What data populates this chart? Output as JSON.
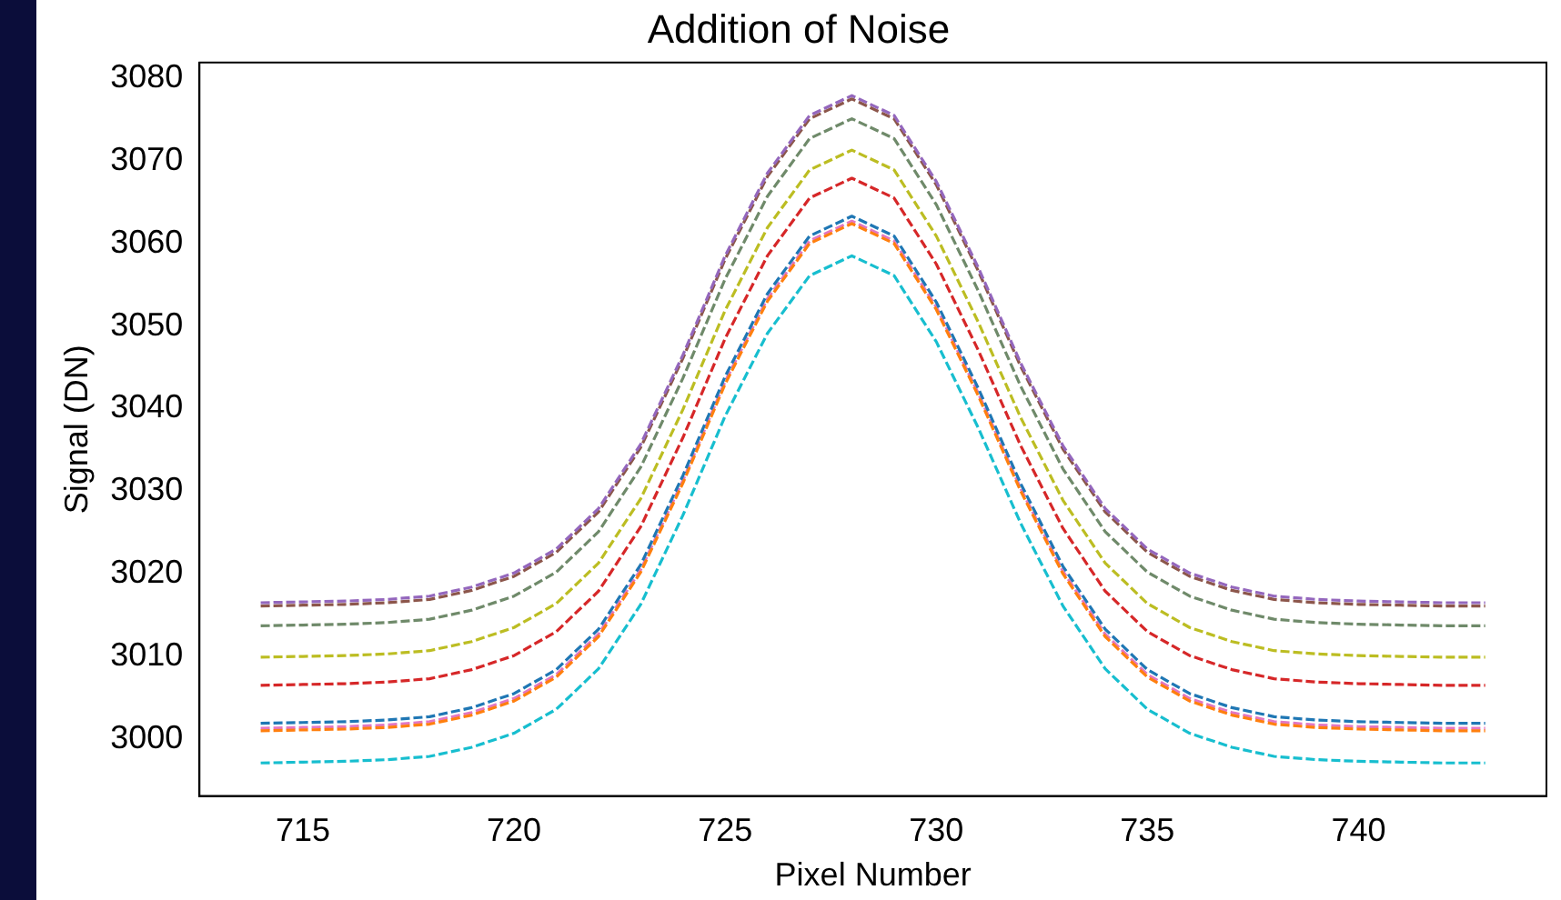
{
  "chart_data": {
    "type": "line",
    "title": "Addition of Noise",
    "xlabel": "Pixel Number",
    "ylabel": "Signal (DN)",
    "x": [
      714,
      715,
      716,
      717,
      718,
      719,
      720,
      721,
      722,
      723,
      724,
      725,
      726,
      727,
      728,
      729,
      730,
      731,
      732,
      733,
      734,
      735,
      736,
      737,
      738,
      739,
      740,
      741,
      742,
      743
    ],
    "xlim": [
      712.55,
      744.45
    ],
    "xticks": [
      715,
      720,
      725,
      730,
      735,
      740
    ],
    "ylim": [
      2993.1,
      3081.9
    ],
    "yticks": [
      3000,
      3010,
      3020,
      3030,
      3040,
      3050,
      3060,
      3070,
      3080
    ],
    "grid": false,
    "legend": false,
    "marker": "none",
    "line_style": "dashed",
    "series": [
      {
        "color": "#1f77b4",
        "values": [
          3001.9,
          3002.0,
          3002.1,
          3002.3,
          3002.7,
          3003.8,
          3005.5,
          3008.4,
          3013.3,
          3021.1,
          3031.9,
          3043.9,
          3053.9,
          3060.9,
          3063.3,
          3060.9,
          3052.9,
          3042.4,
          3030.9,
          3020.9,
          3013.3,
          3008.4,
          3005.5,
          3003.8,
          3002.7,
          3002.3,
          3002.1,
          3002.0,
          3001.9,
          3001.9
        ]
      },
      {
        "color": "#ff7f0e",
        "values": [
          3001.0,
          3001.1,
          3001.2,
          3001.4,
          3001.8,
          3002.9,
          3004.6,
          3007.5,
          3012.4,
          3020.2,
          3031.0,
          3043.0,
          3053.0,
          3060.0,
          3062.4,
          3060.0,
          3052.0,
          3041.5,
          3030.0,
          3020.0,
          3012.4,
          3007.5,
          3004.6,
          3002.9,
          3001.8,
          3001.4,
          3001.2,
          3001.1,
          3001.0,
          3001.0
        ]
      },
      {
        "color": "#6f8a6a",
        "values": [
          3013.7,
          3013.8,
          3013.9,
          3014.1,
          3014.5,
          3015.6,
          3017.3,
          3020.2,
          3025.1,
          3032.9,
          3043.7,
          3055.7,
          3065.7,
          3072.7,
          3075.1,
          3072.7,
          3064.7,
          3054.2,
          3042.7,
          3032.7,
          3025.1,
          3020.2,
          3017.3,
          3015.6,
          3014.5,
          3014.1,
          3013.9,
          3013.8,
          3013.7,
          3013.7
        ]
      },
      {
        "color": "#d62728",
        "values": [
          3006.5,
          3006.6,
          3006.7,
          3006.9,
          3007.3,
          3008.4,
          3010.1,
          3013.0,
          3017.9,
          3025.7,
          3036.5,
          3048.5,
          3058.5,
          3065.5,
          3067.9,
          3065.5,
          3057.5,
          3047.0,
          3035.5,
          3025.5,
          3017.9,
          3013.0,
          3010.1,
          3008.4,
          3007.3,
          3006.9,
          3006.7,
          3006.6,
          3006.5,
          3006.5
        ]
      },
      {
        "color": "#9467bd",
        "values": [
          3016.5,
          3016.6,
          3016.7,
          3016.9,
          3017.3,
          3018.4,
          3020.1,
          3023.0,
          3027.9,
          3035.7,
          3046.5,
          3058.5,
          3068.5,
          3075.5,
          3077.9,
          3075.5,
          3067.5,
          3057.0,
          3045.5,
          3035.5,
          3027.9,
          3023.0,
          3020.1,
          3018.4,
          3017.3,
          3016.9,
          3016.7,
          3016.6,
          3016.5,
          3016.5
        ]
      },
      {
        "color": "#8c564b",
        "values": [
          3016.1,
          3016.2,
          3016.3,
          3016.5,
          3016.9,
          3018.0,
          3019.7,
          3022.6,
          3027.5,
          3035.3,
          3046.1,
          3058.1,
          3068.1,
          3075.1,
          3077.5,
          3075.1,
          3067.1,
          3056.6,
          3045.1,
          3035.1,
          3027.5,
          3022.6,
          3019.7,
          3018.0,
          3016.9,
          3016.5,
          3016.3,
          3016.2,
          3016.1,
          3016.1
        ]
      },
      {
        "color": "#e377c2",
        "values": [
          3001.3,
          3001.4,
          3001.5,
          3001.7,
          3002.1,
          3003.2,
          3004.9,
          3007.8,
          3012.7,
          3020.5,
          3031.3,
          3043.3,
          3053.3,
          3060.3,
          3062.7,
          3060.3,
          3052.3,
          3041.8,
          3030.3,
          3020.3,
          3012.7,
          3007.8,
          3004.9,
          3003.2,
          3002.1,
          3001.7,
          3001.5,
          3001.4,
          3001.3,
          3001.3
        ]
      },
      {
        "color": "#bcbd22",
        "values": [
          3009.9,
          3010.0,
          3010.1,
          3010.3,
          3010.7,
          3011.8,
          3013.5,
          3016.4,
          3021.3,
          3029.1,
          3039.9,
          3051.9,
          3061.9,
          3068.9,
          3071.3,
          3068.9,
          3060.9,
          3050.4,
          3038.9,
          3028.9,
          3021.3,
          3016.4,
          3013.5,
          3011.8,
          3010.7,
          3010.3,
          3010.1,
          3010.0,
          3009.9,
          3009.9
        ]
      },
      {
        "color": "#17becf",
        "values": [
          2997.1,
          2997.2,
          2997.3,
          2997.5,
          2997.9,
          2999.0,
          3000.7,
          3003.6,
          3008.5,
          3016.3,
          3027.1,
          3039.1,
          3049.1,
          3056.1,
          3058.5,
          3056.1,
          3048.1,
          3037.6,
          3026.1,
          3016.1,
          3008.5,
          3003.6,
          3000.7,
          2999.0,
          2997.9,
          2997.5,
          2997.3,
          2997.2,
          2997.1,
          2997.1
        ]
      }
    ]
  }
}
